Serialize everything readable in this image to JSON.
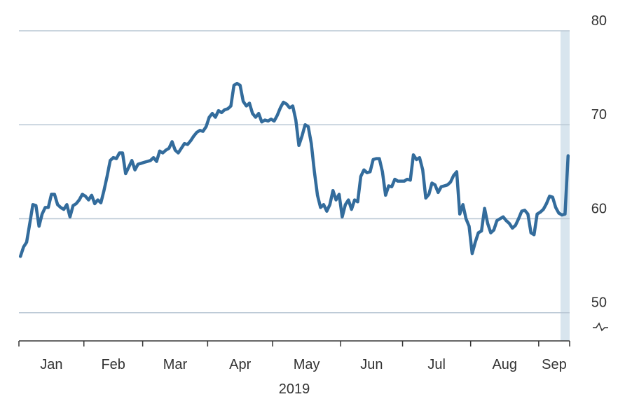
{
  "chart_data": {
    "type": "line",
    "categories": [
      "Jan",
      "Feb",
      "Mar",
      "Apr",
      "May",
      "Jun",
      "Jul",
      "Aug",
      "Sep"
    ],
    "values": [
      [
        56.0,
        57.0,
        57.5,
        59.5,
        61.5,
        61.4,
        59.2,
        60.5,
        61.2,
        61.2,
        62.6,
        62.6,
        61.5,
        61.2,
        61.0,
        61.5,
        60.2,
        61.4,
        61.6,
        62.0,
        62.6
      ],
      [
        62.4,
        62.0,
        62.5,
        61.6,
        62.0,
        61.7,
        63.0,
        64.5,
        66.2,
        66.5,
        66.4,
        67.0,
        67.0,
        64.8,
        65.5,
        66.2,
        65.2,
        65.8,
        65.9
      ],
      [
        66.0,
        66.1,
        66.2,
        66.5,
        66.1,
        67.2,
        67.0,
        67.3,
        67.5,
        68.2,
        67.3,
        67.0,
        67.5,
        68.0,
        67.9,
        68.3,
        68.8,
        69.2,
        69.4,
        69.3,
        69.8
      ],
      [
        70.8,
        71.2,
        70.8,
        71.5,
        71.3,
        71.6,
        71.7,
        72.0,
        74.2,
        74.4,
        74.2,
        72.5,
        72.0,
        72.3,
        71.2,
        70.8,
        71.2,
        70.3,
        70.5,
        70.4,
        70.6
      ],
      [
        70.4,
        71.0,
        71.8,
        72.4,
        72.2,
        71.8,
        72.0,
        70.5,
        67.8,
        68.8,
        70.0,
        69.8,
        68.0,
        65.0,
        62.5,
        61.2,
        61.5,
        60.8,
        61.5,
        63.0,
        62.0,
        62.6
      ],
      [
        60.2,
        61.5,
        62.0,
        61.0,
        62.0,
        61.8,
        64.5,
        65.2,
        64.9,
        65.0,
        66.3,
        66.4,
        66.4,
        65.0,
        62.5,
        63.5,
        63.4,
        64.2,
        64.0,
        64.0
      ],
      [
        64.0,
        64.2,
        64.1,
        66.8,
        66.3,
        66.5,
        65.2,
        62.2,
        62.6,
        63.8,
        63.6,
        62.8,
        63.4,
        63.5,
        63.6,
        63.9,
        64.6,
        65.0,
        60.5,
        61.5,
        60.0,
        59.2
      ],
      [
        56.3,
        57.5,
        58.5,
        58.7,
        61.1,
        59.5,
        58.5,
        58.8,
        59.8,
        60.0,
        60.2,
        59.8,
        59.5,
        59.0,
        59.3,
        60.0,
        60.8,
        60.9,
        60.5,
        58.5,
        58.3,
        60.5
      ],
      [
        60.7,
        61.0,
        61.6,
        62.4,
        62.3,
        61.2,
        60.6,
        60.4,
        60.5,
        66.7
      ]
    ],
    "color": "#336c9c",
    "xlabel": "2019",
    "ylim": [
      47,
      80
    ],
    "yticks": [
      50,
      60,
      70,
      80
    ],
    "grid": true
  }
}
